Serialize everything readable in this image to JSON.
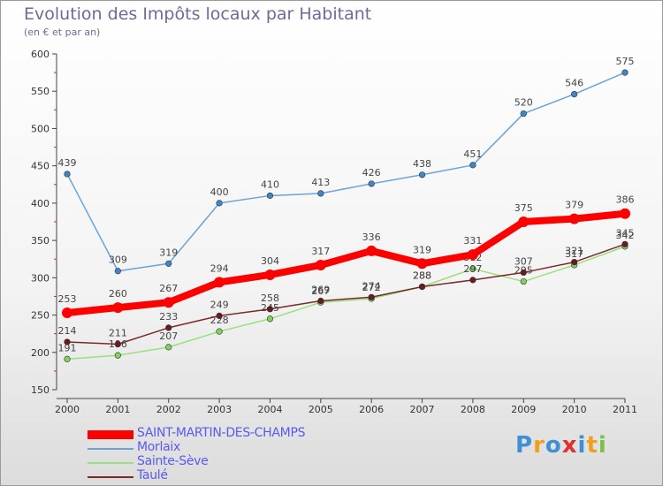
{
  "chart_data": {
    "type": "line",
    "title": "Evolution des Impôts locaux par Habitant",
    "subtitle": "(en € et par an)",
    "x": [
      "2000",
      "2001",
      "2002",
      "2003",
      "2004",
      "2005",
      "2006",
      "2007",
      "2008",
      "2009",
      "2010",
      "2011"
    ],
    "ylim": [
      150,
      600
    ],
    "yticks": [
      150,
      200,
      250,
      300,
      350,
      400,
      450,
      500,
      550,
      600
    ],
    "series": [
      {
        "name": "Morlaix",
        "color": "#6aa3d8",
        "marker": "#3f86c6",
        "values": [
          439,
          309,
          319,
          400,
          410,
          413,
          426,
          438,
          451,
          520,
          546,
          575
        ]
      },
      {
        "name": "Sainte-Sève",
        "color": "#99e07e",
        "marker": "#7fd160",
        "values": [
          191,
          196,
          207,
          228,
          245,
          267,
          272,
          288,
          312,
          295,
          317,
          342
        ]
      },
      {
        "name": "Taulé",
        "color": "#7a2a2a",
        "marker": "#6a1c1c",
        "values": [
          214,
          211,
          233,
          249,
          258,
          269,
          274,
          288,
          297,
          307,
          321,
          345
        ]
      },
      {
        "name": "SAINT-MARTIN-DES-CHAMPS",
        "color": "#ff0000",
        "marker": "#ff0000",
        "values": [
          253,
          260,
          267,
          294,
          304,
          317,
          336,
          319,
          331,
          375,
          379,
          386
        ]
      }
    ],
    "legend": [
      "SAINT-MARTIN-DES-CHAMPS",
      "Morlaix",
      "Sainte-Sève",
      "Taulé"
    ],
    "legend_position": "bottom-left"
  },
  "logo": {
    "text": "Proxiti",
    "letters": [
      "P",
      "r",
      "o",
      "x",
      "i",
      "t",
      "i"
    ],
    "colors": [
      "#3d8fd6",
      "#f0a020",
      "#3d8fd6",
      "#e03030",
      "#3d8fd6",
      "#f0a020",
      "#7ac143"
    ]
  }
}
